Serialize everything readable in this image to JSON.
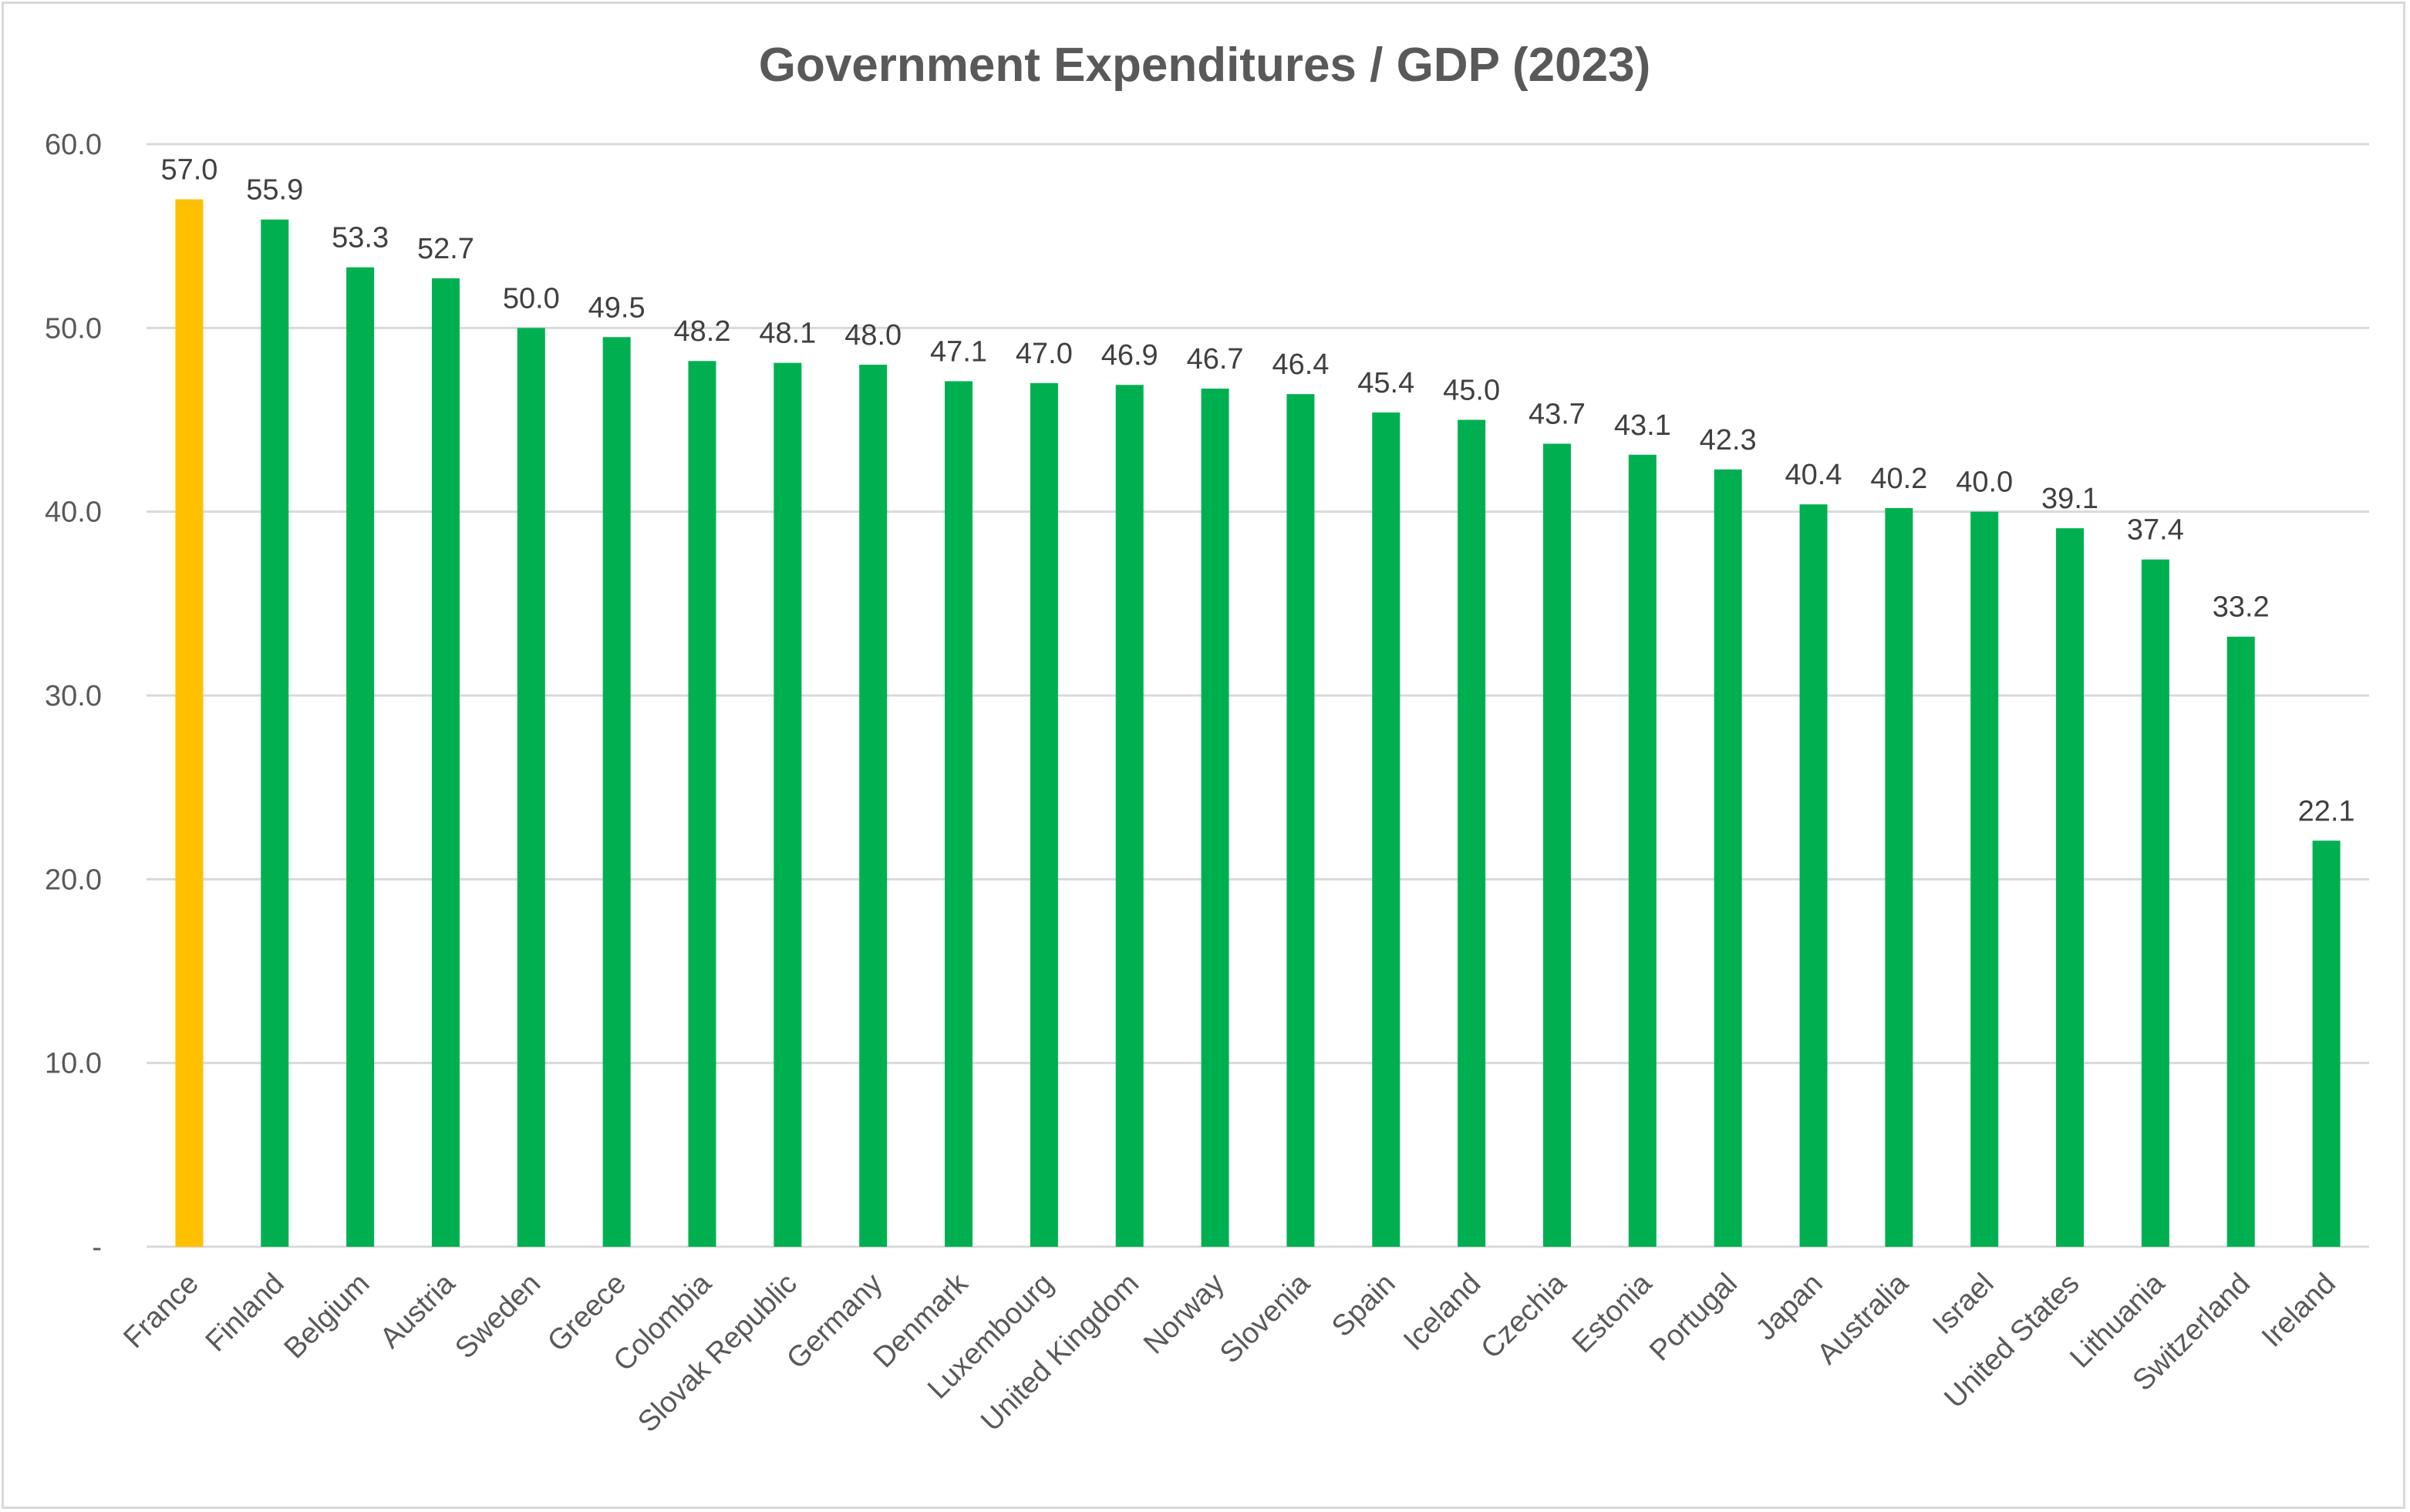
{
  "chart_data": {
    "type": "bar",
    "title": "Government Expenditures / GDP (2023)",
    "xlabel": "",
    "ylabel": "",
    "ylim": [
      0,
      60
    ],
    "yticks": [
      0,
      10,
      20,
      30,
      40,
      50,
      60
    ],
    "ytick_labels": [
      "-",
      "10.0",
      "20.0",
      "30.0",
      "40.0",
      "50.0",
      "60.0"
    ],
    "grid": true,
    "categories": [
      "France",
      "Finland",
      "Belgium",
      "Austria",
      "Sweden",
      "Greece",
      "Colombia",
      "Slovak Republic",
      "Germany",
      "Denmark",
      "Luxembourg",
      "United Kingdom",
      "Norway",
      "Slovenia",
      "Spain",
      "Iceland",
      "Czechia",
      "Estonia",
      "Portugal",
      "Japan",
      "Australia",
      "Israel",
      "United States",
      "Lithuania",
      "Switzerland",
      "Ireland"
    ],
    "values": [
      57.0,
      55.9,
      53.3,
      52.7,
      50.0,
      49.5,
      48.2,
      48.1,
      48.0,
      47.1,
      47.0,
      46.9,
      46.7,
      46.4,
      45.4,
      45.0,
      43.7,
      43.1,
      42.3,
      40.4,
      40.2,
      40.0,
      39.1,
      37.4,
      33.2,
      22.1
    ],
    "data_labels": [
      "57.0",
      "55.9",
      "53.3",
      "52.7",
      "50.0",
      "49.5",
      "48.2",
      "48.1",
      "48.0",
      "47.1",
      "47.0",
      "46.9",
      "46.7",
      "46.4",
      "45.4",
      "45.0",
      "43.7",
      "43.1",
      "42.3",
      "40.4",
      "40.2",
      "40.0",
      "39.1",
      "37.4",
      "33.2",
      "22.1"
    ],
    "highlight_category": "France",
    "colors": {
      "default": "#00b050",
      "highlight": "#ffc000",
      "grid": "#d9d9d9"
    }
  }
}
